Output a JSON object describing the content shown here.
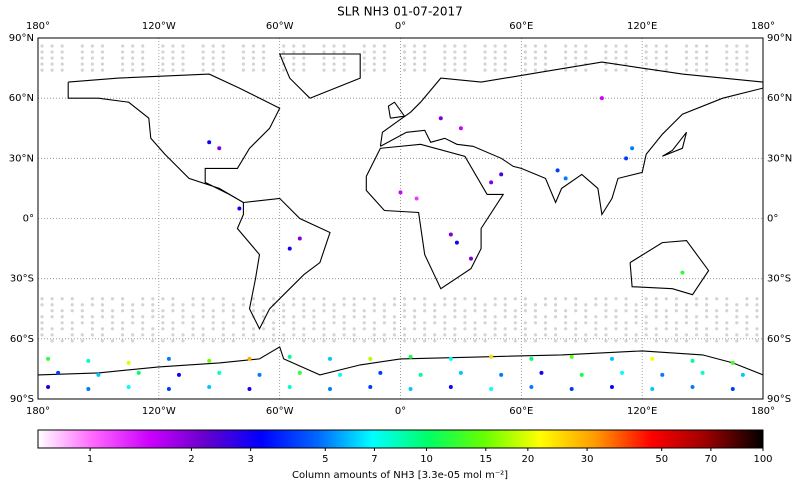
{
  "chart_data": {
    "type": "scatter",
    "title": "SLR NH3 01-07-2017",
    "xlim": [
      -180,
      180
    ],
    "ylim": [
      -90,
      90
    ],
    "xticks": [
      {
        "value": -180,
        "label": "180°"
      },
      {
        "value": -120,
        "label": "120°W"
      },
      {
        "value": -60,
        "label": "60°W"
      },
      {
        "value": 0,
        "label": "0°"
      },
      {
        "value": 60,
        "label": "60°E"
      },
      {
        "value": 120,
        "label": "120°E"
      },
      {
        "value": 180,
        "label": "180°"
      }
    ],
    "yticks": [
      {
        "value": 90,
        "label": "90°N"
      },
      {
        "value": 60,
        "label": "60°N"
      },
      {
        "value": 30,
        "label": "30°N"
      },
      {
        "value": 0,
        "label": "0°"
      },
      {
        "value": -30,
        "label": "30°S"
      },
      {
        "value": -60,
        "label": "60°S"
      },
      {
        "value": -90,
        "label": "90°S"
      }
    ],
    "grid": true,
    "colorbar": {
      "label": "Column amounts of NH3 [3.3e-05 mol m⁻²]",
      "log_scale": true,
      "clim": [
        0.7,
        100
      ],
      "ticks": [
        1,
        2,
        3,
        5,
        7,
        10,
        15,
        20,
        30,
        50,
        70,
        100
      ],
      "colormap": [
        "#ffffff",
        "#ff66ff",
        "#cc00ff",
        "#6600cc",
        "#0000ff",
        "#0066ff",
        "#00ffff",
        "#00ff66",
        "#66ff00",
        "#ffff00",
        "#ff9900",
        "#ff0000",
        "#990000",
        "#000000"
      ]
    },
    "x": [
      -175,
      -155,
      -135,
      -115,
      -95,
      -75,
      -55,
      -35,
      -15,
      5,
      25,
      45,
      65,
      85,
      105,
      125,
      145,
      165,
      -170,
      -150,
      -130,
      -110,
      -90,
      -70,
      -50,
      -30,
      -10,
      10,
      30,
      50,
      70,
      90,
      110,
      130,
      150,
      170,
      -175,
      -155,
      -135,
      -115,
      -95,
      -75,
      -55,
      -35,
      -15,
      5,
      25,
      45,
      65,
      85,
      105,
      125,
      145,
      165,
      25,
      28,
      -55,
      -50,
      78,
      82,
      115,
      112,
      -95,
      -90,
      20,
      30,
      0,
      8,
      45,
      50,
      140,
      100,
      -80,
      35
    ],
    "y": [
      -70,
      -71,
      -72,
      -70,
      -71,
      -70,
      -69,
      -70,
      -70,
      -69,
      -70,
      -69,
      -70,
      -69,
      -70,
      -70,
      -71,
      -72,
      -77,
      -78,
      -77,
      -78,
      -77,
      -78,
      -77,
      -78,
      -77,
      -78,
      -77,
      -78,
      -77,
      -78,
      -77,
      -78,
      -77,
      -78,
      -84,
      -85,
      -84,
      -85,
      -84,
      -85,
      -84,
      -85,
      -84,
      -85,
      -84,
      -85,
      -84,
      -85,
      -84,
      -85,
      -84,
      -85,
      -8,
      -12,
      -15,
      -10,
      24,
      20,
      35,
      30,
      38,
      35,
      50,
      45,
      13,
      10,
      18,
      22,
      -27,
      60,
      5,
      -20
    ],
    "values": [
      12,
      8,
      20,
      5,
      15,
      30,
      9,
      6,
      18,
      11,
      7,
      25,
      10,
      14,
      6,
      22,
      9,
      13,
      4,
      6,
      10,
      3,
      8,
      5,
      12,
      7,
      4,
      9,
      6,
      5,
      3,
      11,
      7,
      5,
      8,
      6,
      3,
      5,
      7,
      4,
      6,
      3,
      8,
      5,
      4,
      6,
      3,
      7,
      5,
      4,
      3,
      6,
      5,
      4,
      2,
      3,
      3,
      2,
      4,
      5,
      5,
      4,
      3,
      2,
      2,
      1.5,
      1.5,
      1.2,
      2,
      2.5,
      12,
      1.5,
      3,
      2
    ]
  }
}
